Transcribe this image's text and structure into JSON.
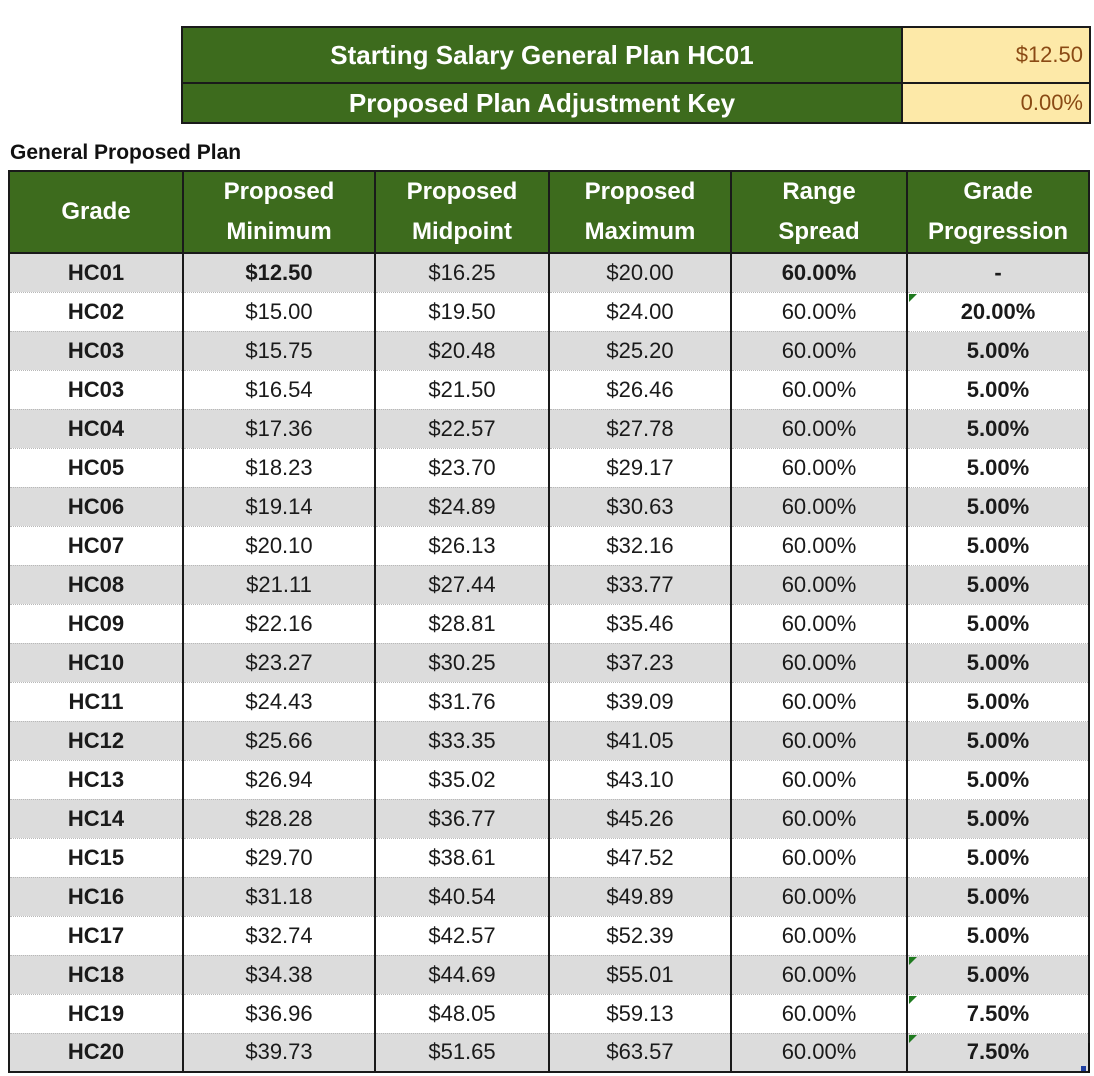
{
  "key": {
    "rows": [
      {
        "label": "Starting Salary General Plan HC01",
        "value": "$12.50"
      },
      {
        "label": "Proposed Plan Adjustment Key",
        "value": "0.00%"
      }
    ]
  },
  "section_title": "General Proposed Plan",
  "table": {
    "headers": [
      [
        "Grade"
      ],
      [
        "Proposed",
        "Minimum"
      ],
      [
        "Proposed",
        "Midpoint"
      ],
      [
        "Proposed",
        "Maximum"
      ],
      [
        "Range",
        "Spread"
      ],
      [
        "Grade",
        "Progression"
      ]
    ],
    "rows": [
      [
        "HC01",
        "$12.50",
        "$16.25",
        "$20.00",
        "60.00%",
        "-"
      ],
      [
        "HC02",
        "$15.00",
        "$19.50",
        "$24.00",
        "60.00%",
        "20.00%"
      ],
      [
        "HC03",
        "$15.75",
        "$20.48",
        "$25.20",
        "60.00%",
        "5.00%"
      ],
      [
        "HC03",
        "$16.54",
        "$21.50",
        "$26.46",
        "60.00%",
        "5.00%"
      ],
      [
        "HC04",
        "$17.36",
        "$22.57",
        "$27.78",
        "60.00%",
        "5.00%"
      ],
      [
        "HC05",
        "$18.23",
        "$23.70",
        "$29.17",
        "60.00%",
        "5.00%"
      ],
      [
        "HC06",
        "$19.14",
        "$24.89",
        "$30.63",
        "60.00%",
        "5.00%"
      ],
      [
        "HC07",
        "$20.10",
        "$26.13",
        "$32.16",
        "60.00%",
        "5.00%"
      ],
      [
        "HC08",
        "$21.11",
        "$27.44",
        "$33.77",
        "60.00%",
        "5.00%"
      ],
      [
        "HC09",
        "$22.16",
        "$28.81",
        "$35.46",
        "60.00%",
        "5.00%"
      ],
      [
        "HC10",
        "$23.27",
        "$30.25",
        "$37.23",
        "60.00%",
        "5.00%"
      ],
      [
        "HC11",
        "$24.43",
        "$31.76",
        "$39.09",
        "60.00%",
        "5.00%"
      ],
      [
        "HC12",
        "$25.66",
        "$33.35",
        "$41.05",
        "60.00%",
        "5.00%"
      ],
      [
        "HC13",
        "$26.94",
        "$35.02",
        "$43.10",
        "60.00%",
        "5.00%"
      ],
      [
        "HC14",
        "$28.28",
        "$36.77",
        "$45.26",
        "60.00%",
        "5.00%"
      ],
      [
        "HC15",
        "$29.70",
        "$38.61",
        "$47.52",
        "60.00%",
        "5.00%"
      ],
      [
        "HC16",
        "$31.18",
        "$40.54",
        "$49.89",
        "60.00%",
        "5.00%"
      ],
      [
        "HC17",
        "$32.74",
        "$42.57",
        "$52.39",
        "60.00%",
        "5.00%"
      ],
      [
        "HC18",
        "$34.38",
        "$44.69",
        "$55.01",
        "60.00%",
        "5.00%"
      ],
      [
        "HC19",
        "$36.96",
        "$48.05",
        "$59.13",
        "60.00%",
        "7.50%"
      ],
      [
        "HC20",
        "$39.73",
        "$51.65",
        "$63.57",
        "60.00%",
        "7.50%"
      ]
    ],
    "flagged_progression_rows": [
      1,
      18,
      19,
      20
    ]
  },
  "colors": {
    "header_green": "#3d6b1d",
    "key_value_fill": "#fde9a8",
    "key_value_text": "#8a4a14",
    "band_gray": "#dcdcdc",
    "flag_green": "#1f7a1f"
  }
}
